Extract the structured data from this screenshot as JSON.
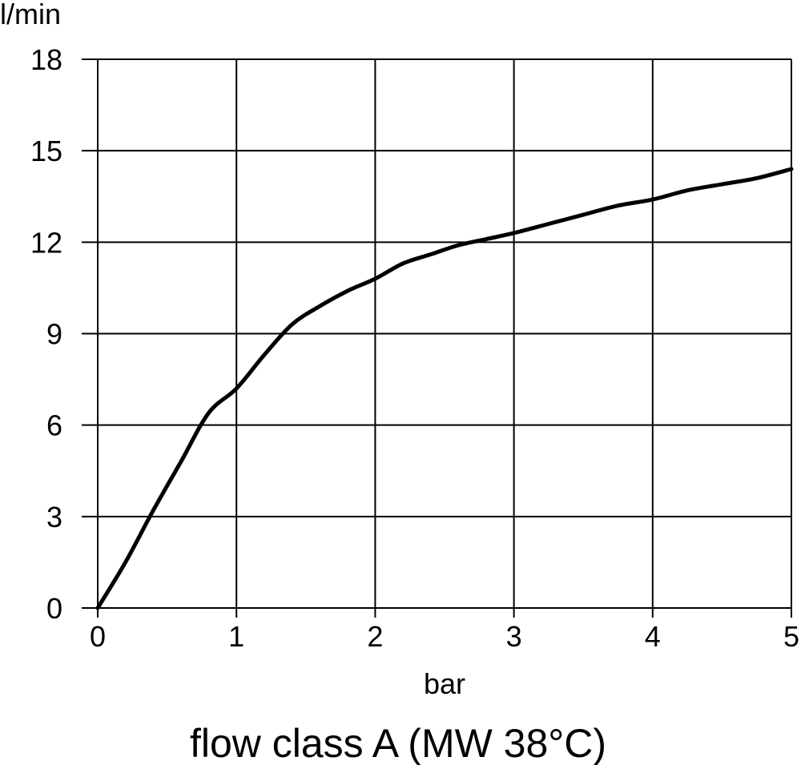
{
  "chart_data": {
    "type": "line",
    "title": "",
    "caption": "flow class A (MW 38°C)",
    "xlabel": "bar",
    "ylabel": "l/min",
    "xlim": [
      0,
      5
    ],
    "ylim": [
      0,
      18
    ],
    "xticks": [
      0,
      1,
      2,
      3,
      4,
      5
    ],
    "yticks": [
      0,
      3,
      6,
      9,
      12,
      15,
      18
    ],
    "grid": true,
    "legend": "none",
    "colors": {
      "line": "#000000",
      "grid": "#000000",
      "background": "#ffffff"
    },
    "series": [
      {
        "x": [
          0,
          0.2,
          0.4,
          0.6,
          0.8,
          1.0,
          1.2,
          1.4,
          1.6,
          1.8,
          2.0,
          2.2,
          2.4,
          2.6,
          2.8,
          3.0,
          3.25,
          3.5,
          3.75,
          4.0,
          4.25,
          4.5,
          4.75,
          5.0
        ],
        "values": [
          0,
          1.5,
          3.2,
          4.8,
          6.4,
          7.2,
          8.3,
          9.3,
          9.9,
          10.4,
          10.8,
          11.3,
          11.6,
          11.9,
          12.1,
          12.3,
          12.6,
          12.9,
          13.2,
          13.4,
          13.7,
          13.9,
          14.1,
          14.4
        ]
      }
    ]
  }
}
